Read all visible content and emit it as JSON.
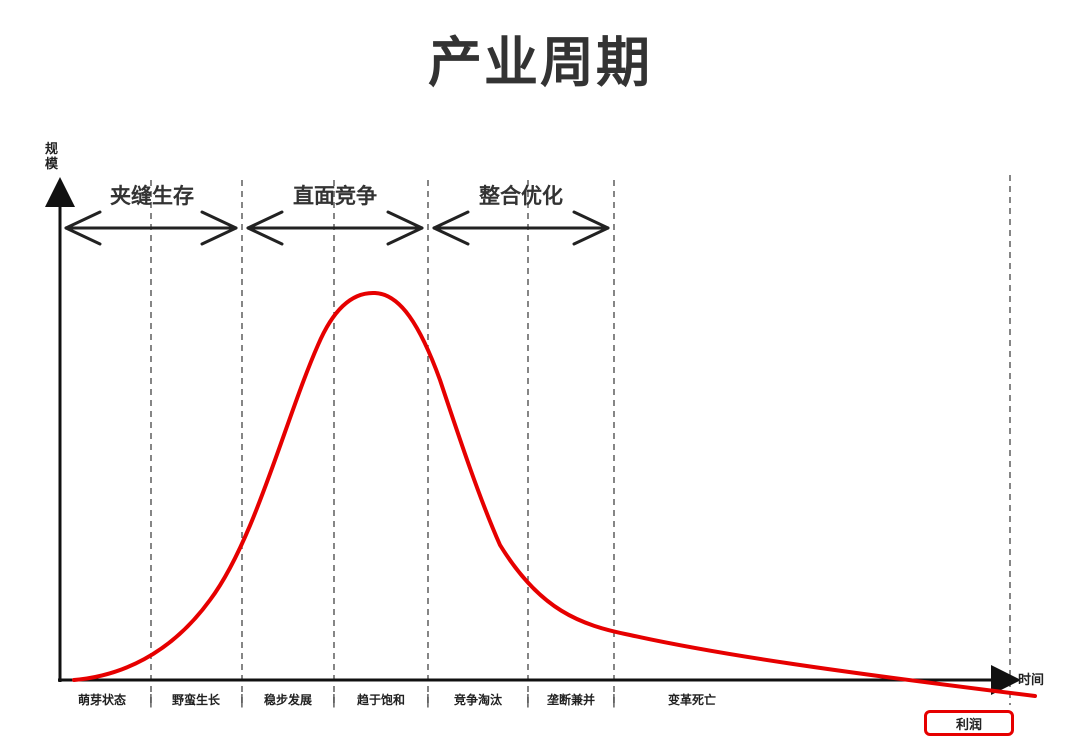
{
  "title": "产业周期",
  "axes": {
    "y_label_line1": "规",
    "y_label_line2": "模",
    "x_label": "时间"
  },
  "phases": [
    {
      "label": "夹缝生存"
    },
    {
      "label": "直面竞争"
    },
    {
      "label": "整合优化"
    }
  ],
  "stages": [
    "萌芽状态",
    "野蛮生长",
    "稳步发展",
    "趋于饱和",
    "竞争淘汰",
    "垄断兼并",
    "变革死亡"
  ],
  "stage_separator": "|",
  "legend": {
    "label": "利润",
    "color": "#e60000"
  },
  "colors": {
    "axis": "#111111",
    "arrows": "#222222",
    "curve": "#e60000",
    "divider": "#444444"
  }
}
